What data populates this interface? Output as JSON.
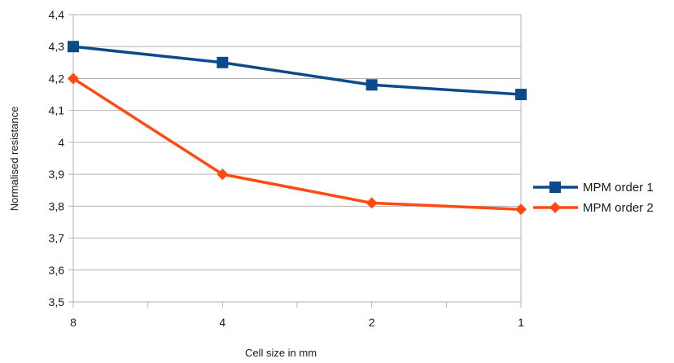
{
  "chart_data": {
    "type": "line",
    "categories": [
      "8",
      "4",
      "2",
      "1"
    ],
    "series": [
      {
        "name": "MPM order 1",
        "values": [
          4.3,
          4.25,
          4.18,
          4.15
        ],
        "color": "#0c4a8c",
        "marker": "square"
      },
      {
        "name": "MPM order 2",
        "values": [
          4.2,
          3.9,
          3.81,
          3.79
        ],
        "color": "#ff4a12",
        "marker": "diamond"
      }
    ],
    "title": "",
    "xlabel": "Cell size in mm",
    "ylabel": "Normalised resistance",
    "ylim": [
      3.5,
      4.4
    ],
    "yticks": [
      "3,5",
      "3,6",
      "3,7",
      "3,8",
      "3,9",
      "4",
      "4,1",
      "4,2",
      "4,3",
      "4,4"
    ],
    "grid": "horizontal",
    "legend": "right"
  }
}
